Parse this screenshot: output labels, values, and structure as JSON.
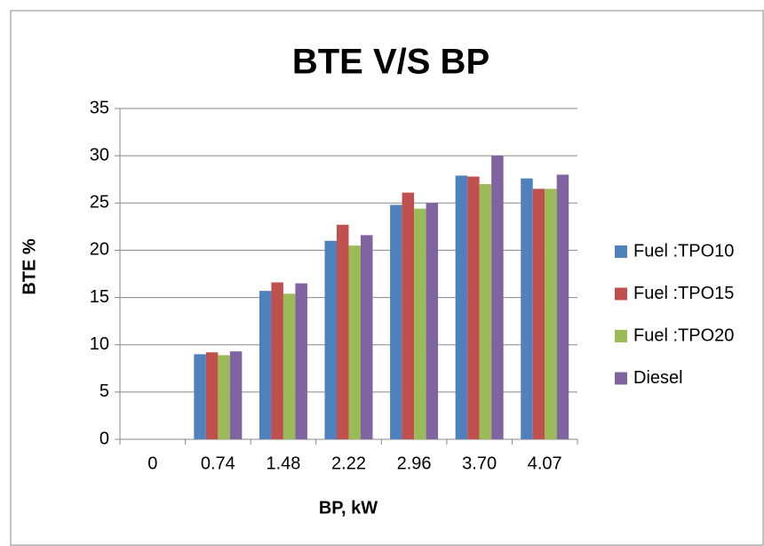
{
  "chart_data": {
    "type": "bar",
    "title": "BTE V/S BP",
    "x_label": "BP, kW",
    "y_label": "BTE %",
    "categories": [
      "0",
      "0.74",
      "1.48",
      "2.22",
      "2.96",
      "3.70",
      "4.07"
    ],
    "series": [
      {
        "name": "Fuel :TPO10",
        "color": "#4f81bd",
        "values": [
          0,
          9.0,
          15.7,
          21.0,
          24.8,
          27.9,
          27.6
        ]
      },
      {
        "name": "Fuel :TPO15",
        "color": "#c0504d",
        "values": [
          0,
          9.2,
          16.6,
          22.7,
          26.1,
          27.8,
          26.5
        ]
      },
      {
        "name": "Fuel :TPO20",
        "color": "#9bbb59",
        "values": [
          0,
          8.9,
          15.4,
          20.5,
          24.4,
          27.0,
          26.5
        ]
      },
      {
        "name": "Diesel",
        "color": "#8064a2",
        "values": [
          0,
          9.3,
          16.5,
          21.6,
          25.0,
          30.0,
          28.0
        ]
      }
    ],
    "ylim": [
      0,
      35
    ],
    "yticks": [
      0,
      5,
      10,
      15,
      20,
      25,
      30,
      35
    ],
    "grid": true,
    "legend": "right"
  }
}
